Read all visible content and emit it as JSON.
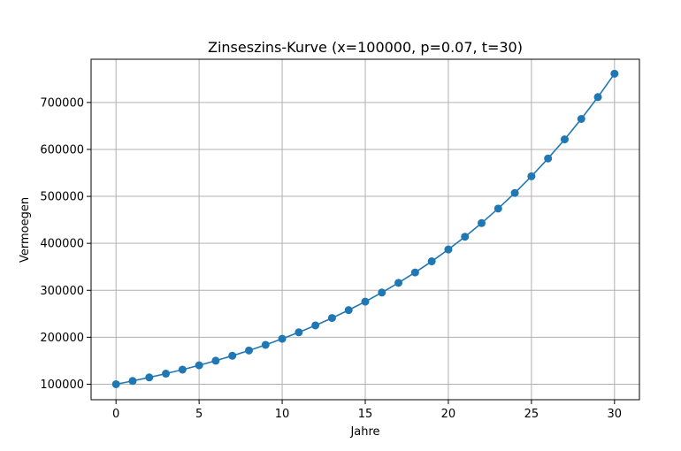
{
  "chart_data": {
    "type": "line",
    "title": "Zinseszins-Kurve (x=100000, p=0.07, t=30)",
    "xlabel": "Jahre",
    "ylabel": "Vermoegen",
    "xlim": [
      -1.5,
      31.5
    ],
    "ylim": [
      67000,
      792000
    ],
    "xticks": [
      0,
      5,
      10,
      15,
      20,
      25,
      30
    ],
    "xtick_labels": [
      "0",
      "5",
      "10",
      "15",
      "20",
      "25",
      "30"
    ],
    "yticks": [
      100000,
      200000,
      300000,
      400000,
      500000,
      600000,
      700000
    ],
    "ytick_labels": [
      "100000",
      "200000",
      "300000",
      "400000",
      "500000",
      "600000",
      "700000"
    ],
    "grid": true,
    "color": "#1f77b4",
    "marker": "circle",
    "series": [
      {
        "x": [
          0,
          1,
          2,
          3,
          4,
          5,
          6,
          7,
          8,
          9,
          10,
          11,
          12,
          13,
          14,
          15,
          16,
          17,
          18,
          19,
          20,
          21,
          22,
          23,
          24,
          25,
          26,
          27,
          28,
          29,
          30
        ],
        "values": [
          100000,
          107000,
          114490,
          122504,
          131080,
          140255,
          150073,
          160578,
          171819,
          183846,
          196715,
          210485,
          225219,
          240985,
          257853,
          275903,
          295216,
          315882,
          337993,
          361653,
          386968,
          414056,
          443040,
          474053,
          507237,
          542743,
          580735,
          621387,
          664884,
          711426,
          761226
        ]
      }
    ]
  }
}
